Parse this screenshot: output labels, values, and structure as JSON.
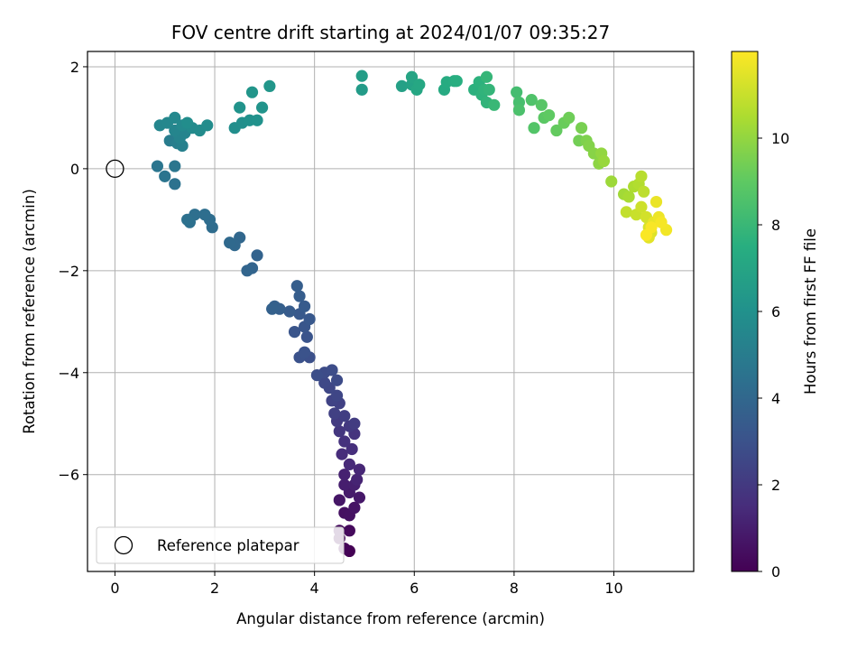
{
  "chart_data": {
    "type": "scatter",
    "title": "FOV centre drift starting at 2024/01/07 09:35:27",
    "xlabel": "Angular distance from reference (arcmin)",
    "ylabel": "Rotation from reference (arcmin)",
    "xlim": [
      -0.55,
      11.6
    ],
    "ylim": [
      -7.9,
      2.3
    ],
    "xticks": [
      0,
      2,
      4,
      6,
      8,
      10
    ],
    "yticks": [
      -6,
      -4,
      -2,
      0,
      2
    ],
    "grid": true,
    "colormap": "viridis",
    "colorbar": {
      "label": "Hours from first FF file",
      "range": [
        0,
        12
      ],
      "ticks": [
        0,
        2,
        4,
        6,
        8,
        10
      ]
    },
    "reference": {
      "x": 0,
      "y": 0,
      "label": "Reference platepar"
    },
    "legend_position": "lower-left",
    "series": [
      {
        "points": [
          [
            4.7,
            -7.5,
            0.0
          ],
          [
            4.6,
            -7.45,
            0.1
          ],
          [
            4.5,
            -7.25,
            0.2
          ],
          [
            4.7,
            -7.1,
            0.3
          ],
          [
            4.5,
            -7.1,
            0.35
          ],
          [
            4.6,
            -6.75,
            0.5
          ],
          [
            4.7,
            -6.8,
            0.55
          ],
          [
            4.8,
            -6.65,
            0.6
          ],
          [
            4.5,
            -6.5,
            0.7
          ],
          [
            4.9,
            -6.45,
            0.8
          ],
          [
            4.7,
            -6.35,
            0.9
          ],
          [
            4.6,
            -6.2,
            1.0
          ],
          [
            4.8,
            -6.2,
            1.05
          ],
          [
            4.6,
            -6.0,
            1.1
          ],
          [
            4.85,
            -6.1,
            1.2
          ],
          [
            4.9,
            -5.9,
            1.3
          ],
          [
            4.7,
            -5.8,
            1.4
          ],
          [
            4.55,
            -5.6,
            1.5
          ],
          [
            4.75,
            -5.5,
            1.6
          ],
          [
            4.6,
            -5.35,
            1.7
          ],
          [
            4.8,
            -5.2,
            1.8
          ],
          [
            4.5,
            -5.15,
            1.9
          ],
          [
            4.7,
            -5.05,
            2.0
          ],
          [
            4.45,
            -4.95,
            2.05
          ],
          [
            4.8,
            -5.0,
            2.1
          ],
          [
            4.6,
            -4.85,
            2.2
          ],
          [
            4.4,
            -4.8,
            2.25
          ],
          [
            4.5,
            -4.6,
            2.3
          ],
          [
            4.35,
            -4.55,
            2.4
          ],
          [
            4.45,
            -4.45,
            2.5
          ],
          [
            4.3,
            -4.3,
            2.55
          ],
          [
            4.2,
            -4.2,
            2.6
          ],
          [
            4.45,
            -4.15,
            2.7
          ],
          [
            4.2,
            -4.0,
            2.75
          ],
          [
            4.35,
            -3.95,
            2.8
          ],
          [
            4.05,
            -4.05,
            2.85
          ],
          [
            3.9,
            -3.7,
            2.9
          ],
          [
            3.7,
            -3.7,
            3.0
          ],
          [
            3.8,
            -3.6,
            3.05
          ],
          [
            3.85,
            -3.3,
            3.1
          ],
          [
            3.6,
            -3.2,
            3.15
          ],
          [
            3.8,
            -3.1,
            3.2
          ],
          [
            3.9,
            -2.95,
            3.3
          ],
          [
            3.7,
            -2.85,
            3.35
          ],
          [
            3.8,
            -2.7,
            3.4
          ],
          [
            3.5,
            -2.8,
            3.45
          ],
          [
            3.7,
            -2.5,
            3.5
          ],
          [
            3.65,
            -2.3,
            3.55
          ],
          [
            3.3,
            -2.75,
            3.6
          ],
          [
            3.2,
            -2.7,
            3.65
          ],
          [
            3.15,
            -2.75,
            3.7
          ],
          [
            2.85,
            -1.7,
            3.8
          ],
          [
            2.75,
            -1.95,
            3.85
          ],
          [
            2.65,
            -2.0,
            3.9
          ],
          [
            2.5,
            -1.35,
            4.0
          ],
          [
            2.4,
            -1.5,
            4.05
          ],
          [
            2.3,
            -1.45,
            4.1
          ],
          [
            1.95,
            -1.15,
            4.2
          ],
          [
            1.9,
            -1.0,
            4.25
          ],
          [
            1.8,
            -0.9,
            4.3
          ],
          [
            1.6,
            -0.9,
            4.35
          ],
          [
            1.5,
            -1.05,
            4.4
          ],
          [
            1.45,
            -1.0,
            4.45
          ],
          [
            1.2,
            -0.3,
            4.5
          ],
          [
            1.0,
            -0.15,
            4.6
          ],
          [
            0.85,
            0.05,
            4.65
          ],
          [
            1.2,
            0.05,
            4.7
          ],
          [
            1.1,
            0.55,
            5.0
          ],
          [
            1.25,
            0.5,
            5.1
          ],
          [
            1.35,
            0.45,
            5.2
          ],
          [
            1.3,
            0.6,
            5.3
          ],
          [
            1.4,
            0.7,
            5.35
          ],
          [
            1.2,
            0.75,
            5.4
          ],
          [
            0.9,
            0.85,
            5.45
          ],
          [
            1.05,
            0.9,
            5.5
          ],
          [
            1.2,
            1.0,
            5.55
          ],
          [
            1.35,
            0.85,
            5.6
          ],
          [
            1.55,
            0.8,
            5.65
          ],
          [
            1.7,
            0.75,
            5.7
          ],
          [
            1.85,
            0.85,
            5.75
          ],
          [
            1.45,
            0.9,
            5.8
          ],
          [
            2.4,
            0.8,
            5.85
          ],
          [
            2.55,
            0.9,
            5.9
          ],
          [
            2.7,
            0.95,
            6.0
          ],
          [
            2.85,
            0.95,
            6.05
          ],
          [
            2.5,
            1.2,
            6.1
          ],
          [
            2.95,
            1.2,
            6.15
          ],
          [
            2.75,
            1.5,
            6.2
          ],
          [
            3.1,
            1.62,
            6.25
          ],
          [
            4.95,
            1.55,
            6.5
          ],
          [
            4.95,
            1.82,
            6.6
          ],
          [
            5.75,
            1.62,
            6.8
          ],
          [
            5.95,
            1.65,
            6.9
          ],
          [
            5.95,
            1.8,
            7.0
          ],
          [
            6.05,
            1.55,
            7.1
          ],
          [
            6.1,
            1.65,
            7.15
          ],
          [
            6.6,
            1.55,
            7.3
          ],
          [
            6.65,
            1.7,
            7.35
          ],
          [
            6.8,
            1.72,
            7.4
          ],
          [
            6.85,
            1.72,
            7.5
          ],
          [
            7.2,
            1.55,
            7.6
          ],
          [
            7.3,
            1.7,
            7.65
          ],
          [
            7.35,
            1.45,
            7.7
          ],
          [
            7.4,
            1.55,
            7.75
          ],
          [
            7.45,
            1.3,
            7.8
          ],
          [
            7.5,
            1.55,
            7.85
          ],
          [
            7.45,
            1.8,
            7.9
          ],
          [
            7.6,
            1.25,
            8.0
          ],
          [
            8.05,
            1.5,
            8.3
          ],
          [
            8.1,
            1.3,
            8.4
          ],
          [
            8.1,
            1.15,
            8.5
          ],
          [
            8.35,
            1.35,
            8.6
          ],
          [
            8.4,
            0.8,
            8.7
          ],
          [
            8.55,
            1.25,
            8.8
          ],
          [
            8.6,
            1.0,
            8.9
          ],
          [
            8.7,
            1.05,
            9.0
          ],
          [
            8.85,
            0.75,
            9.1
          ],
          [
            9.0,
            0.9,
            9.2
          ],
          [
            9.1,
            1.0,
            9.3
          ],
          [
            9.3,
            0.55,
            9.4
          ],
          [
            9.35,
            0.8,
            9.5
          ],
          [
            9.45,
            0.55,
            9.6
          ],
          [
            9.5,
            0.45,
            9.7
          ],
          [
            9.6,
            0.3,
            9.8
          ],
          [
            9.7,
            0.1,
            9.9
          ],
          [
            9.75,
            0.3,
            10.0
          ],
          [
            9.8,
            0.15,
            10.1
          ],
          [
            9.95,
            -0.25,
            10.2
          ],
          [
            10.2,
            -0.5,
            10.3
          ],
          [
            10.3,
            -0.55,
            10.4
          ],
          [
            10.4,
            -0.35,
            10.5
          ],
          [
            10.5,
            -0.3,
            10.6
          ],
          [
            10.55,
            -0.15,
            10.7
          ],
          [
            10.6,
            -0.45,
            10.8
          ],
          [
            10.25,
            -0.85,
            10.9
          ],
          [
            10.45,
            -0.9,
            11.0
          ],
          [
            10.55,
            -0.75,
            11.1
          ],
          [
            10.65,
            -0.95,
            11.2
          ],
          [
            10.7,
            -1.15,
            11.3
          ],
          [
            10.75,
            -1.25,
            11.4
          ],
          [
            10.7,
            -1.35,
            11.5
          ],
          [
            10.8,
            -1.05,
            11.6
          ],
          [
            10.85,
            -0.65,
            11.65
          ],
          [
            10.9,
            -0.95,
            11.7
          ],
          [
            11.05,
            -1.2,
            11.8
          ],
          [
            10.95,
            -1.05,
            11.85
          ],
          [
            10.75,
            -1.15,
            11.9
          ],
          [
            10.65,
            -1.3,
            11.95
          ]
        ]
      }
    ]
  }
}
